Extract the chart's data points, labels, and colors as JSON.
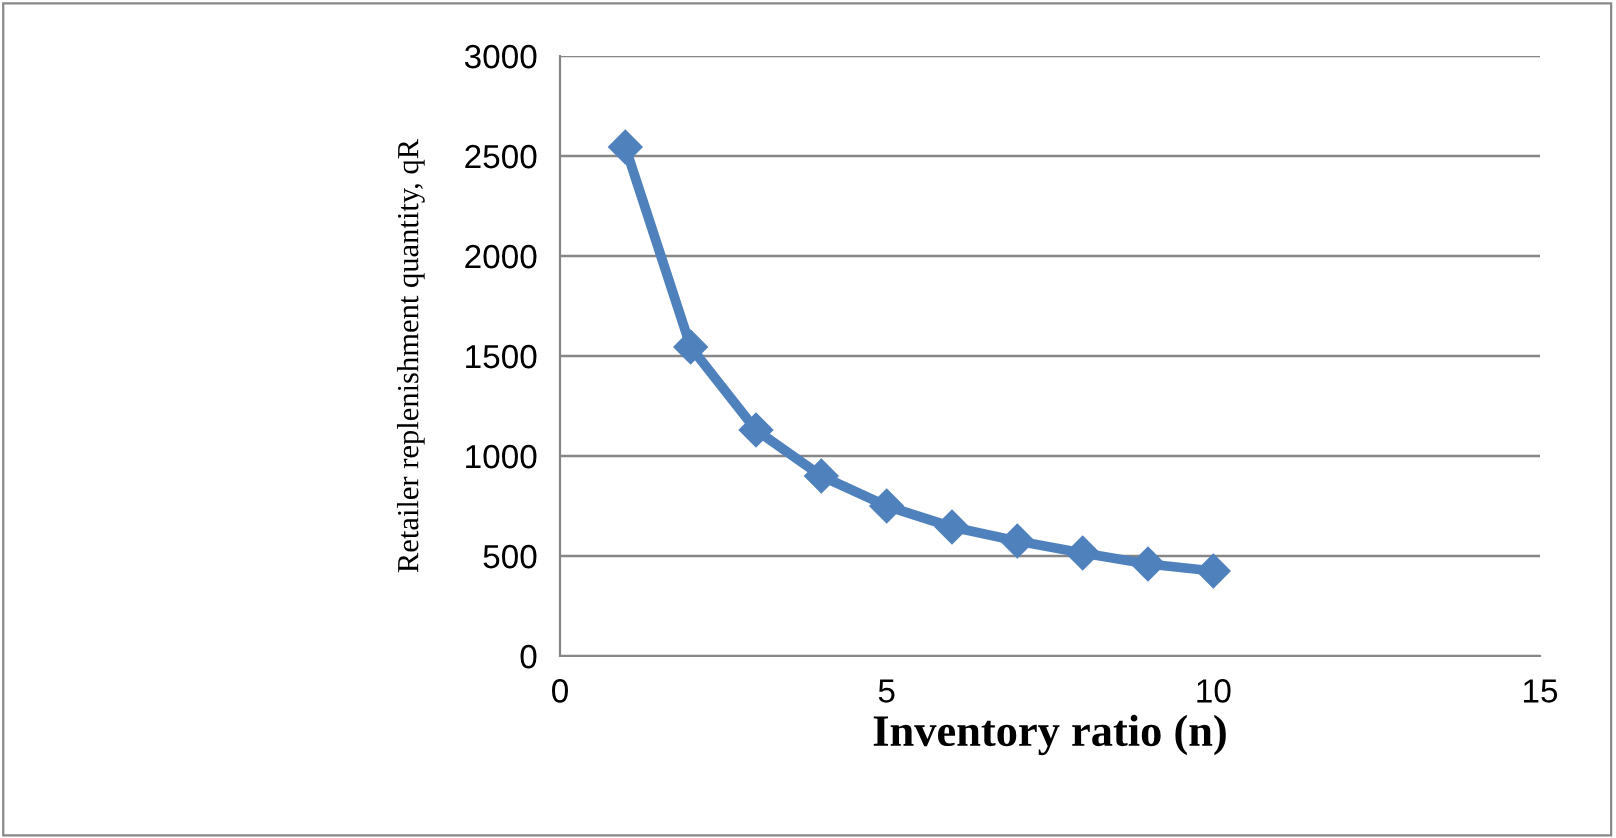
{
  "chart_data": {
    "type": "line",
    "xlabel": "Inventory ratio (n)",
    "ylabel": "Retailer replenishment quantity, qR",
    "x": [
      1,
      2,
      3,
      4,
      5,
      6,
      7,
      8,
      9,
      10
    ],
    "series": [
      {
        "color": "#4f81bd",
        "values": [
          2545,
          1545,
          1130,
          900,
          750,
          645,
          575,
          515,
          460,
          425
        ]
      }
    ],
    "xlim": [
      0,
      15
    ],
    "xticks": [
      0,
      5,
      10,
      15
    ],
    "ylim": [
      0,
      3000
    ],
    "yticks": [
      0,
      500,
      1000,
      1500,
      2000,
      2500,
      3000
    ],
    "grid": "y",
    "marker": "diamond",
    "line_style": "solid",
    "legend": false
  }
}
